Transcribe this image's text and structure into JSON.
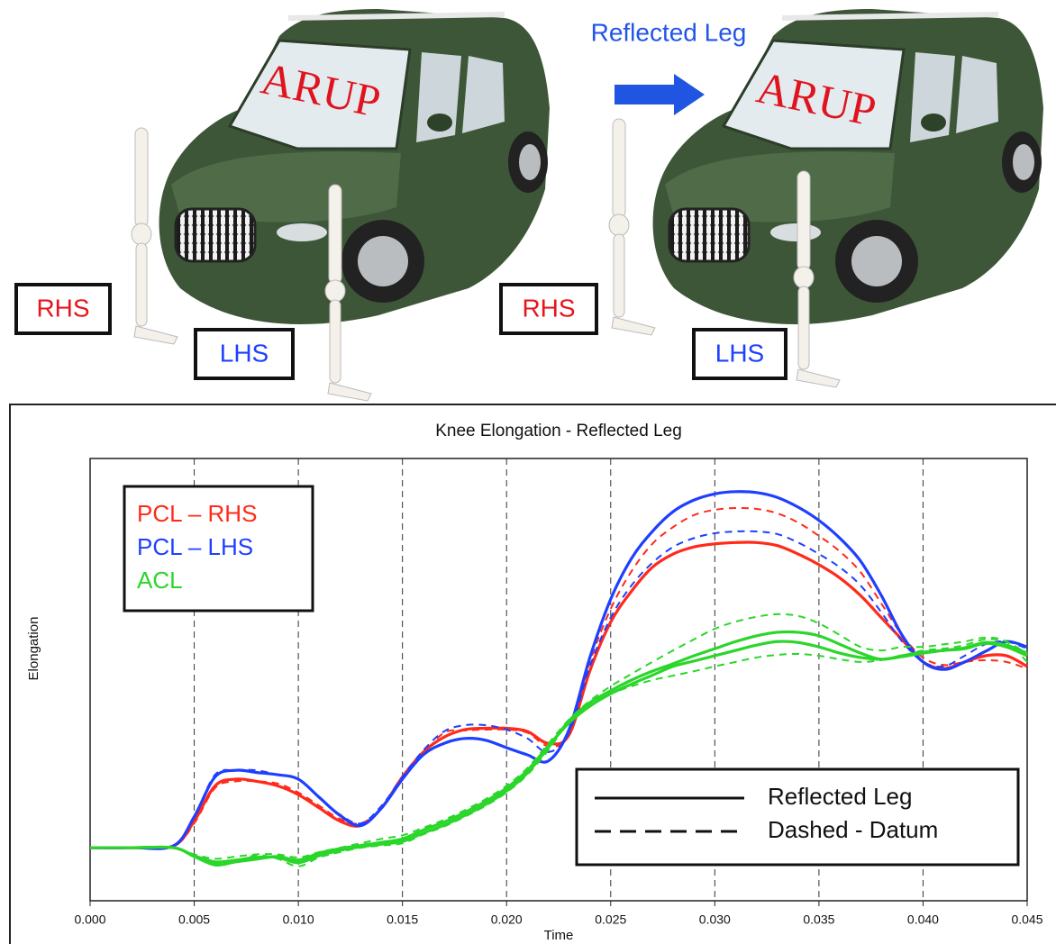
{
  "illustration": {
    "caption": "Reflected Leg",
    "logo_left": "ARUP",
    "logo_right": "ARUP",
    "rhs_left": "RHS",
    "lhs_left": "LHS",
    "rhs_right": "RHS",
    "lhs_right": "LHS"
  },
  "chart_data": {
    "type": "line",
    "title": "Knee Elongation - Reflected Leg",
    "x_label": "Time",
    "y_label": "Elongation",
    "xlim": [
      0,
      0.045
    ],
    "ylim": [
      0,
      100
    ],
    "xticks": [
      {
        "value": 0,
        "label": "0.000"
      },
      {
        "value": 0.005,
        "label": "0.005"
      },
      {
        "value": 0.01,
        "label": "0.010"
      },
      {
        "value": 0.015,
        "label": "0.015"
      },
      {
        "value": 0.02,
        "label": "0.020"
      },
      {
        "value": 0.025,
        "label": "0.025"
      },
      {
        "value": 0.03,
        "label": "0.030"
      },
      {
        "value": 0.035,
        "label": "0.035"
      },
      {
        "value": 0.04,
        "label": "0.040"
      },
      {
        "value": 0.045,
        "label": "0.045"
      }
    ],
    "grid": true,
    "x": [
      0,
      0.002,
      0.004,
      0.005,
      0.006,
      0.007,
      0.008,
      0.009,
      0.01,
      0.011,
      0.012,
      0.013,
      0.014,
      0.015,
      0.016,
      0.017,
      0.018,
      0.019,
      0.02,
      0.021,
      0.022,
      0.023,
      0.024,
      0.025,
      0.026,
      0.027,
      0.028,
      0.029,
      0.03,
      0.031,
      0.032,
      0.033,
      0.034,
      0.035,
      0.036,
      0.037,
      0.038,
      0.039,
      0.04,
      0.041,
      0.042,
      0.043,
      0.044,
      0.045
    ],
    "series": [
      {
        "name": "PCL – RHS",
        "color": "#ff2a1a",
        "curves": [
          {
            "dash": false,
            "values": [
              12,
              12,
              12.4,
              18,
              26,
              27.5,
              27,
              26,
              24,
              21,
              18,
              17,
              21,
              28,
              33.6,
              37,
              38.7,
              39,
              39,
              38.3,
              35.6,
              37.5,
              52,
              63,
              70,
              75.4,
              78.4,
              80,
              80.7,
              81,
              81,
              80.3,
              78.4,
              76,
              73,
              69,
              64,
              59,
              54,
              52.5,
              54,
              55.4,
              55.4,
              53
            ]
          },
          {
            "dash": true,
            "values": [
              12,
              12,
              12.4,
              17.5,
              25.5,
              27,
              27,
              26.5,
              24.5,
              21.5,
              18.5,
              17.5,
              21,
              27.5,
              33,
              38,
              38.5,
              38.7,
              38.7,
              38,
              35,
              37.5,
              54,
              66,
              74.5,
              80.7,
              84.5,
              87.2,
              88.4,
              88.8,
              88.6,
              87.6,
              85.5,
              82.5,
              79,
              74.3,
              67.2,
              60,
              55,
              53.3,
              54,
              54.4,
              54,
              52.5
            ]
          }
        ]
      },
      {
        "name": "PCL – LHS",
        "color": "#1f3fff",
        "curves": [
          {
            "dash": false,
            "values": [
              12,
              12,
              12.4,
              19,
              28,
              29.5,
              29,
              28.5,
              27.5,
              23.4,
              19.3,
              17,
              21,
              27.5,
              33,
              35.6,
              36.7,
              36.3,
              34.6,
              33,
              31.6,
              38.7,
              55,
              68.2,
              77.4,
              83.5,
              88,
              90.6,
              92,
              92.5,
              92.3,
              91.2,
              89,
              86,
              82,
              76.8,
              69,
              60,
              54,
              52.3,
              54,
              56.4,
              58.6,
              57.4
            ]
          },
          {
            "dash": true,
            "values": [
              12,
              12,
              12.4,
              19,
              28.5,
              29.5,
              29.5,
              28.5,
              27.5,
              23.4,
              19.5,
              17.5,
              21.5,
              28,
              34,
              38.3,
              39.7,
              39.7,
              38.7,
              36.7,
              33.6,
              38,
              53,
              64,
              71.3,
              76.4,
              80,
              82,
              83.1,
              83.5,
              83.5,
              82.9,
              81,
              78.4,
              75.4,
              71.3,
              65.2,
              58.6,
              54,
              53,
              55.4,
              58,
              58.6,
              57
            ]
          }
        ]
      },
      {
        "name": "ACL",
        "color": "#2bd62b",
        "curves": [
          {
            "dash": false,
            "values": [
              12,
              12,
              12,
              10.2,
              8.8,
              9.2,
              9.8,
              9.8,
              8.6,
              10.2,
              11.4,
              12.2,
              12.8,
              13.4,
              15.3,
              17.1,
              19.3,
              21.8,
              24.8,
              28.9,
              34.6,
              40.7,
              44.8,
              47.5,
              49.9,
              51.9,
              53.6,
              55.4,
              57,
              58.6,
              59.9,
              60.7,
              60.7,
              59.9,
              58,
              56,
              54.6,
              55.4,
              56.2,
              56.6,
              57,
              58.2,
              57.4,
              55.4
            ]
          },
          {
            "dash": false,
            "values": [
              12,
              12,
              12,
              10,
              8.1,
              8.8,
              9.4,
              10,
              9.2,
              10.8,
              11.8,
              12.5,
              13.2,
              14,
              16,
              17.8,
              20,
              22.5,
              25.5,
              29.5,
              35,
              40.2,
              44,
              46.8,
              49,
              51,
              53,
              54.2,
              55.4,
              56.6,
              57.8,
              58.6,
              58.4,
              57.4,
              56,
              55,
              54.6,
              55.2,
              56,
              56.6,
              57.2,
              58.4,
              57.8,
              56
            ]
          },
          {
            "dash": true,
            "values": [
              12,
              12,
              12,
              10.5,
              9.5,
              10,
              10.5,
              10.5,
              9.8,
              11,
              12,
              13,
              14,
              14.8,
              16.5,
              18.3,
              20.5,
              23,
              26,
              30,
              35.5,
              41,
              45.2,
              48.5,
              51.3,
              54,
              56.6,
              59.1,
              61.5,
              63.1,
              64.2,
              64.8,
              64.4,
              62.7,
              60.1,
              57.4,
              56.6,
              57.4,
              57.4,
              58,
              58.6,
              59.5,
              58.6,
              54
            ]
          },
          {
            "dash": true,
            "values": [
              12,
              12,
              12,
              10,
              8.5,
              9,
              10.3,
              9.5,
              7.8,
              9.8,
              11,
              12,
              12.5,
              13,
              15,
              16.8,
              19,
              21.5,
              24.5,
              28.5,
              34,
              40.5,
              44.5,
              46.8,
              48.5,
              49.9,
              50.9,
              51.9,
              53,
              54,
              55,
              55.6,
              55.8,
              55.4,
              54.6,
              54,
              54.4,
              55.4,
              56.6,
              57,
              57.8,
              59.1,
              58.6,
              55.8
            ]
          }
        ]
      }
    ],
    "style_legend": [
      {
        "label": "Reflected Leg",
        "dash": false
      },
      {
        "label": "Dashed - Datum",
        "dash": true
      }
    ]
  }
}
